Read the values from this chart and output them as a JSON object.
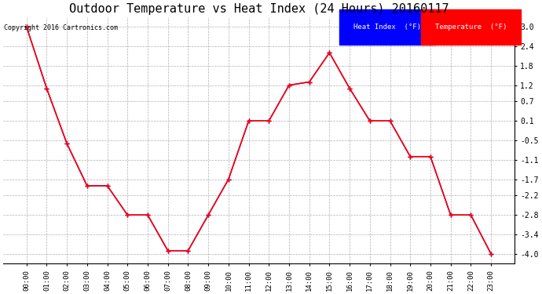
{
  "title": "Outdoor Temperature vs Heat Index (24 Hours) 20160117",
  "copyright": "Copyright 2016 Cartronics.com",
  "x_labels": [
    "00:00",
    "01:00",
    "02:00",
    "03:00",
    "04:00",
    "05:00",
    "06:00",
    "07:00",
    "08:00",
    "09:00",
    "10:00",
    "11:00",
    "12:00",
    "13:00",
    "14:00",
    "15:00",
    "16:00",
    "17:00",
    "18:00",
    "19:00",
    "20:00",
    "21:00",
    "22:00",
    "23:00"
  ],
  "temperature": [
    3.0,
    1.1,
    -0.6,
    -1.9,
    -1.9,
    -2.8,
    -2.8,
    -3.9,
    -3.9,
    -2.8,
    -1.7,
    0.1,
    0.1,
    1.2,
    1.3,
    2.2,
    1.1,
    0.1,
    0.1,
    -1.0,
    -1.0,
    -2.8,
    -2.8,
    -4.0
  ],
  "heat_index": [
    3.0,
    1.1,
    -0.6,
    -1.9,
    -1.9,
    -2.8,
    -2.8,
    -3.9,
    -3.9,
    -2.8,
    -1.7,
    0.1,
    0.1,
    1.2,
    1.3,
    2.2,
    1.1,
    0.1,
    0.1,
    -1.0,
    -1.0,
    -2.8,
    -2.8,
    -4.0
  ],
  "ylim": [
    -4.3,
    3.3
  ],
  "yticks": [
    3.0,
    2.4,
    1.8,
    1.2,
    0.7,
    0.1,
    -0.5,
    -1.1,
    -1.7,
    -2.2,
    -2.8,
    -3.4,
    -4.0
  ],
  "temp_color": "#ff0000",
  "heat_color": "#0000ff",
  "bg_color": "#ffffff",
  "grid_color": "#b0b0b0",
  "title_fontsize": 11,
  "legend_heat_bg": "#0000ff",
  "legend_temp_bg": "#ff0000",
  "legend_text_color": "#ffffff"
}
